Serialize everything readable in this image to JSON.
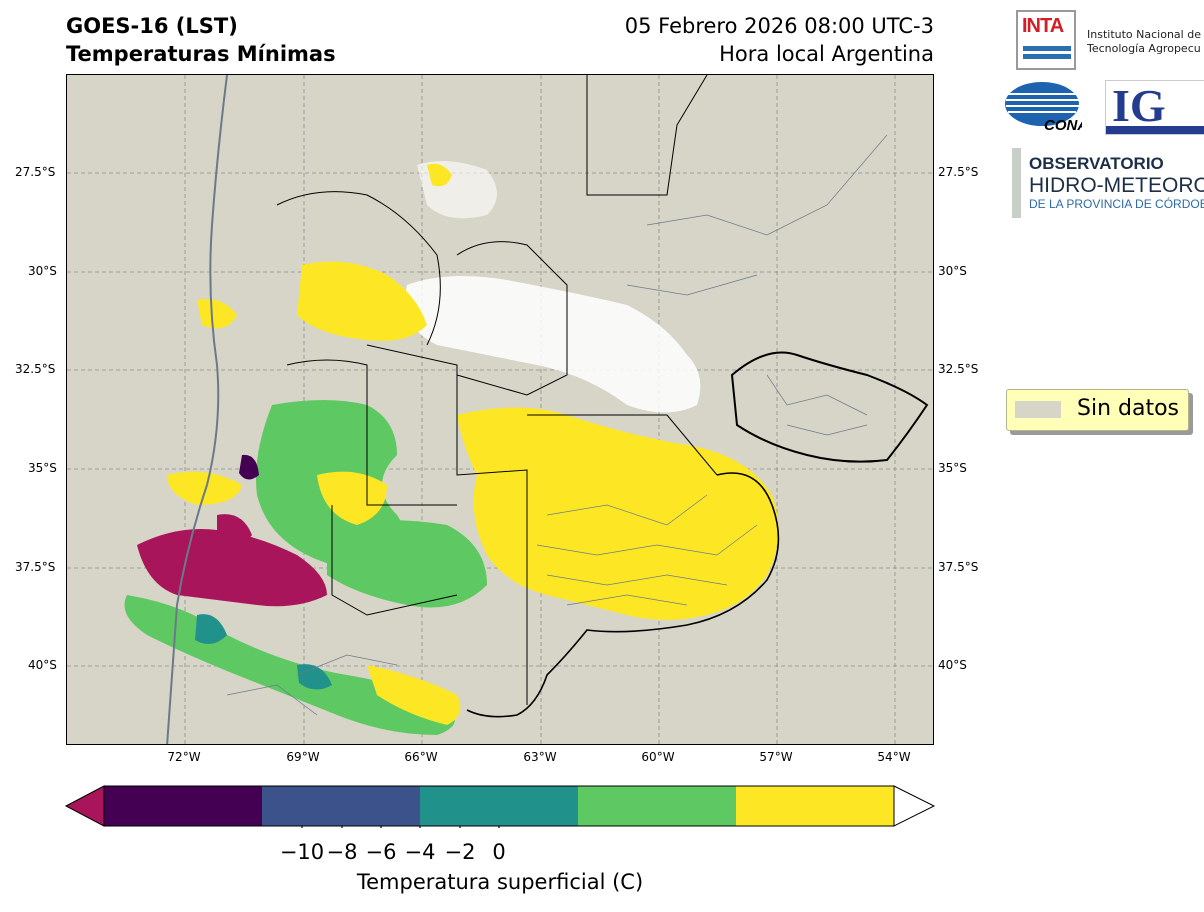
{
  "header": {
    "title_line1": "GOES-16 (LST)",
    "title_line2": "Temperaturas Mínimas",
    "datetime": "05 Febrero 2026 08:00 UTC-3",
    "timezone_note": "Hora local Argentina"
  },
  "map": {
    "lat_labels": [
      "27.5°S",
      "30°S",
      "32.5°S",
      "35°S",
      "37.5°S",
      "40°S"
    ],
    "lon_labels": [
      "72°W",
      "69°W",
      "66°W",
      "63°W",
      "60°W",
      "57°W",
      "54°W"
    ],
    "background_color": "#d6d5c7"
  },
  "legend": {
    "no_data_label": "Sin datos",
    "no_data_color": "#d6d5c7"
  },
  "colorbar": {
    "label": "Temperatura superficial (C)",
    "ticks": [
      "−10",
      "−8",
      "−6",
      "−4",
      "−2",
      "0"
    ],
    "colors": [
      "#a8155a",
      "#440154",
      "#3b528b",
      "#21918c",
      "#5ec962",
      "#fde725",
      "#ffffff"
    ]
  },
  "logos": {
    "inta_mark": "INTA",
    "inta_line1": "Instituto Nacional de",
    "inta_line2": "Tecnología Agropecu",
    "conae_mark": "CONAE",
    "ig_mark": "IG",
    "obs_line1": "OBSERVATORIO",
    "obs_line2": "HIDRO-METEOROLÓG",
    "obs_line3": "DE LA PROVINCIA DE CÓRDOBA"
  }
}
